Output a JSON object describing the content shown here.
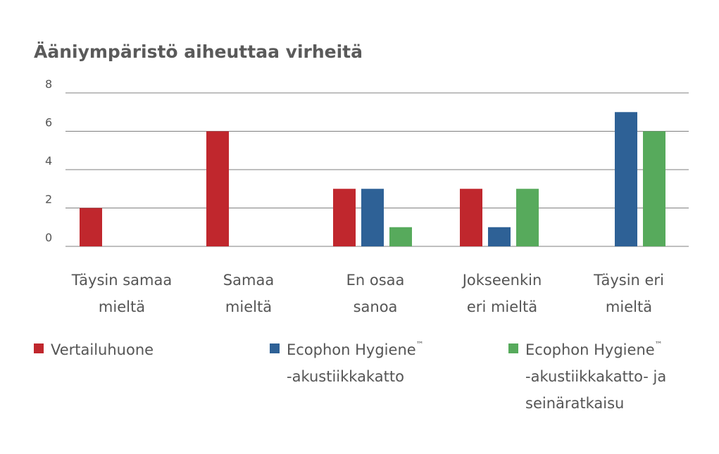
{
  "chart_data": {
    "type": "bar",
    "title": "Ääniympäristö aiheuttaa virheitä",
    "xlabel": "",
    "ylabel": "",
    "ylim": [
      0,
      8
    ],
    "yticks": [
      0,
      2,
      4,
      6,
      8
    ],
    "grid": true,
    "legend_position": "bottom",
    "categories": [
      [
        "Täysin samaa",
        "mieltä"
      ],
      [
        "Samaa",
        "mieltä"
      ],
      [
        "En osaa",
        "sanoa"
      ],
      [
        "Jokseenkin",
        "eri mieltä"
      ],
      [
        "Täysin eri",
        "mieltä"
      ]
    ],
    "series": [
      {
        "name": "Vertailuhuone",
        "legend_lines": [
          "Vertailuhuone"
        ],
        "color": "#c0272d",
        "values": [
          2,
          6,
          3,
          3,
          0
        ]
      },
      {
        "name": "Ecophon Hygiene™ -akustiikkakatto",
        "legend_lines": [
          "Ecophon Hygiene|™",
          "-akustiikkakatto"
        ],
        "color": "#2e6196",
        "values": [
          0,
          0,
          3,
          1,
          7
        ]
      },
      {
        "name": "Ecophon Hygiene™ -akustiikkakatto- ja seinäratkaisu",
        "legend_lines": [
          "Ecophon Hygiene|™",
          "-akustiikkakatto- ja",
          "seinäratkaisu"
        ],
        "color": "#57aa5c",
        "values": [
          0,
          0,
          1,
          3,
          6
        ]
      }
    ]
  }
}
